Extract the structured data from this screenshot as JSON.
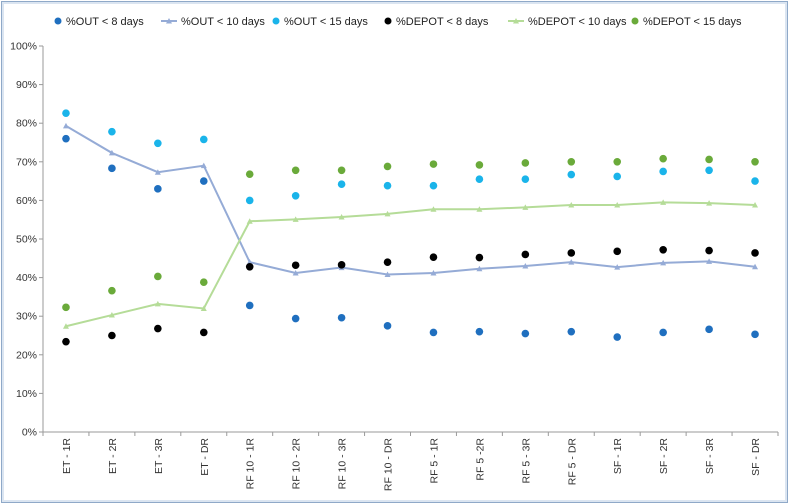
{
  "chart_data": {
    "type": "line",
    "categories": [
      "ET - 1R",
      "ET - 2R",
      "ET - 3R",
      "ET - DR",
      "RF 10 - 1R",
      "RF 10 - 2R",
      "RF 10 - 3R",
      "RF 10 - DR",
      "RF 5 - 1R",
      "RF 5 -2R",
      "RF 5 - 3R",
      "RF 5 - DR",
      "SF - 1R",
      "SF - 2R",
      "SF - 3R",
      "SF - DR"
    ],
    "ylim": [
      0,
      100
    ],
    "yticks": [
      "0%",
      "10%",
      "20%",
      "30%",
      "40%",
      "50%",
      "60%",
      "70%",
      "80%",
      "90%",
      "100%"
    ],
    "grid": false,
    "legend_position": "top",
    "series": [
      {
        "name": "%OUT < 8 days",
        "style": "markers",
        "marker": "circle",
        "color": "#1f6fbf",
        "values": [
          76,
          68.3,
          63,
          65,
          32.8,
          29.4,
          29.6,
          27.5,
          25.8,
          26,
          25.5,
          26,
          24.6,
          25.8,
          26.6,
          25.3
        ]
      },
      {
        "name": "%OUT < 10 days",
        "style": "line",
        "marker": "triangle",
        "color": "#95abd6",
        "values": [
          79.3,
          72.3,
          67.3,
          69,
          44,
          41.2,
          42.6,
          40.8,
          41.2,
          42.3,
          43,
          44,
          42.7,
          43.8,
          44.2,
          42.8
        ]
      },
      {
        "name": "%OUT < 15 days",
        "style": "markers",
        "marker": "circle",
        "color": "#1ab4ea",
        "values": [
          82.6,
          77.8,
          74.8,
          75.8,
          60,
          61.2,
          64.2,
          63.8,
          63.8,
          65.5,
          65.5,
          66.7,
          66.2,
          67.5,
          67.8,
          65
        ]
      },
      {
        "name": "%DEPOT < 8 days",
        "style": "markers",
        "marker": "circle",
        "color": "#000000",
        "values": [
          23.4,
          25,
          26.8,
          25.8,
          42.8,
          43.2,
          43.3,
          44,
          45.3,
          45.2,
          46,
          46.4,
          46.8,
          47.2,
          47,
          46.4
        ]
      },
      {
        "name": "%DEPOT < 10 days",
        "style": "line",
        "marker": "triangle",
        "color": "#b5dc98",
        "values": [
          27.4,
          30.3,
          33.2,
          32,
          54.6,
          55.1,
          55.7,
          56.5,
          57.7,
          57.7,
          58.2,
          58.8,
          58.8,
          59.5,
          59.3,
          58.8
        ]
      },
      {
        "name": "%DEPOT < 15 days",
        "style": "markers",
        "marker": "circle",
        "color": "#6aaa3a",
        "values": [
          32.3,
          36.6,
          40.3,
          38.8,
          66.8,
          67.8,
          67.8,
          68.8,
          69.4,
          69.2,
          69.7,
          70,
          70,
          70.8,
          70.6,
          70
        ]
      }
    ]
  }
}
